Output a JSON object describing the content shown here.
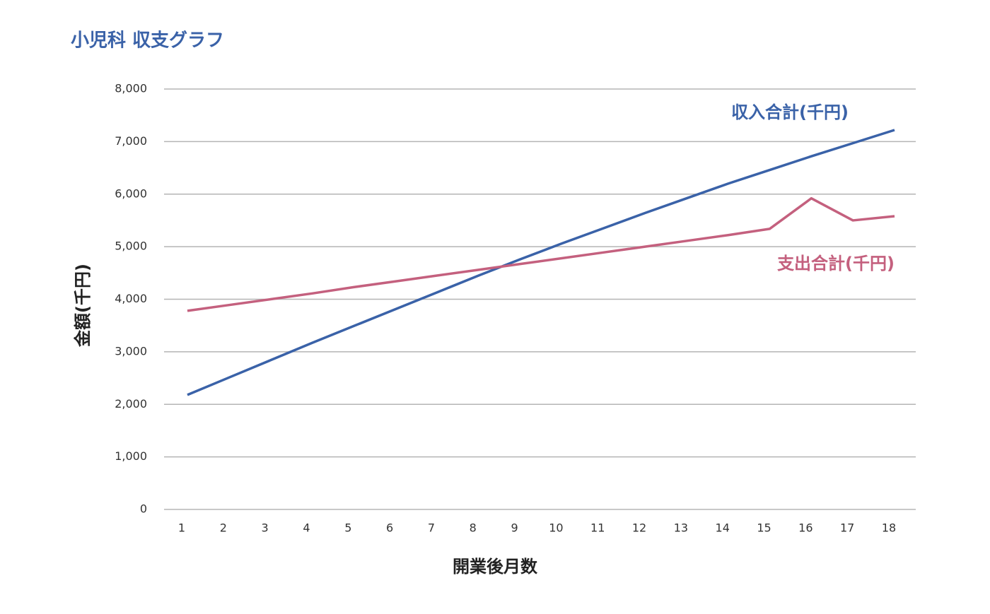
{
  "chart_data": {
    "type": "line",
    "title": "小児科 収支グラフ",
    "x_label": "開業後月数",
    "y_label": "金額(千円)",
    "categories": [
      "1",
      "2",
      "3",
      "4",
      "5",
      "6",
      "7",
      "8",
      "9",
      "10",
      "11",
      "12",
      "13",
      "14",
      "15",
      "16",
      "17",
      "18"
    ],
    "series": [
      {
        "name": "収入合計(千円)",
        "color": "#3a62a8",
        "values": [
          2180,
          2510,
          2840,
          3170,
          3490,
          3810,
          4130,
          4450,
          4760,
          5060,
          5350,
          5640,
          5920,
          6200,
          6460,
          6720,
          6970,
          7220
        ]
      },
      {
        "name": "支出合計(千円)",
        "color": "#c4607e",
        "values": [
          3780,
          3890,
          4000,
          4110,
          4230,
          4340,
          4450,
          4560,
          4670,
          4780,
          4890,
          5000,
          5110,
          5220,
          5340,
          5920,
          5500,
          5580
        ]
      }
    ],
    "ylim": [
      0,
      8000
    ],
    "yticks": [
      0,
      {
        "value": 1000,
        "label": "1,000"
      },
      {
        "value": 2000,
        "label": "2,000"
      },
      {
        "value": 3000,
        "label": "3,000"
      },
      {
        "value": 4000,
        "label": "4,000"
      },
      {
        "value": 5000,
        "label": "5,000"
      },
      {
        "value": 6000,
        "label": "6,000"
      },
      {
        "value": 7000,
        "label": "7,000"
      },
      {
        "value": 8000,
        "label": "8,000"
      }
    ],
    "grid": true
  }
}
